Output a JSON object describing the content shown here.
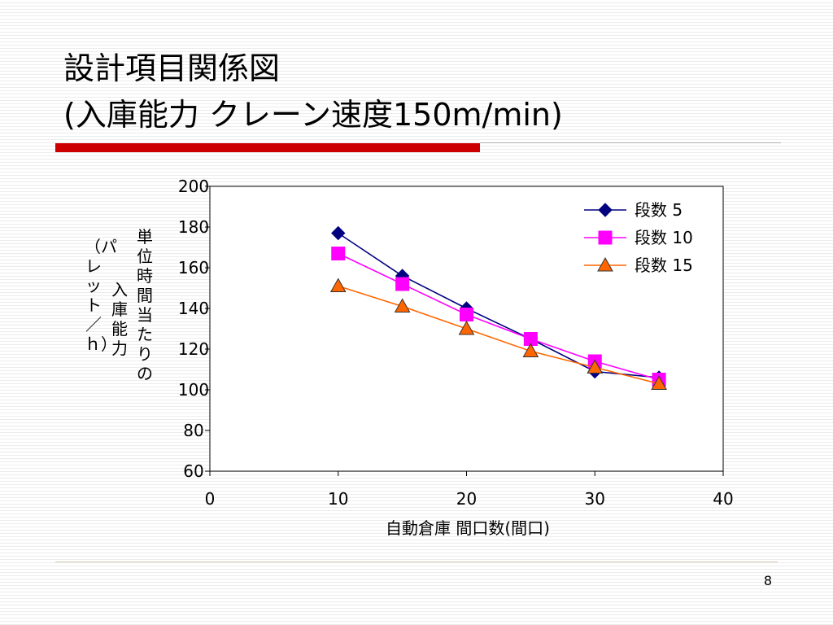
{
  "slide": {
    "title_line1": "設計項目関係図",
    "title_line2": "(入庫能力 クレーン速度150m/min)",
    "page_number": "8"
  },
  "chart_data": {
    "type": "line",
    "title": "",
    "xlabel": "自動倉庫 間口数(間口)",
    "ylabel_lines": [
      "単位時間当たりの",
      "入庫能力",
      "（パレット／ｈ）"
    ],
    "xlim": [
      0,
      40
    ],
    "ylim": [
      60,
      200
    ],
    "x_ticks": [
      0,
      10,
      20,
      30,
      40
    ],
    "y_ticks": [
      60,
      80,
      100,
      120,
      140,
      160,
      180,
      200
    ],
    "x": [
      10,
      15,
      20,
      25,
      30,
      35
    ],
    "series": [
      {
        "name": "段数 5",
        "values": [
          177,
          156,
          140,
          125,
          109,
          106
        ],
        "color": "#000080",
        "marker": "diamond"
      },
      {
        "name": "段数 10",
        "values": [
          167,
          152,
          137,
          125,
          114,
          105
        ],
        "color": "#ff00ff",
        "marker": "square"
      },
      {
        "name": "段数 15",
        "values": [
          151,
          141,
          130,
          119,
          111,
          103
        ],
        "color": "#ff6600",
        "marker": "triangle"
      }
    ],
    "grid": false,
    "legend_position": "top-right"
  }
}
